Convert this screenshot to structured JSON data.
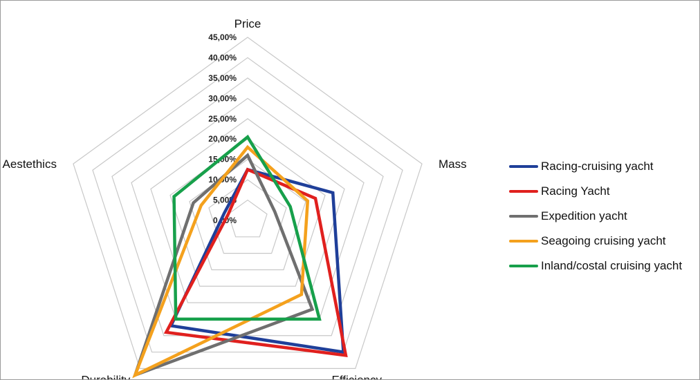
{
  "chart_data": {
    "type": "radar",
    "axes": [
      "Price",
      "Mass",
      "Efficiency",
      "Durability",
      "Aestethics"
    ],
    "ticks": [
      "0,00%",
      "5,00%",
      "10,00%",
      "15,00%",
      "20,00%",
      "25,00%",
      "30,00%",
      "35,00%",
      "40,00%",
      "45,00%"
    ],
    "rlim": [
      0,
      45
    ],
    "grid": true,
    "legend_position": "right",
    "series": [
      {
        "name": "Racing-cruising yacht",
        "color": "#1f3f99",
        "values": [
          12.5,
          22,
          40,
          32,
          6
        ]
      },
      {
        "name": "Racing Yacht",
        "color": "#e0201e",
        "values": [
          12.5,
          17.5,
          41,
          34,
          5
        ]
      },
      {
        "name": "Expedition yacht",
        "color": "#6f6f6f",
        "values": [
          16,
          7,
          27,
          47,
          14
        ]
      },
      {
        "name": "Seagoing cruising yacht",
        "color": "#f4a11d",
        "values": [
          18,
          15.5,
          22.5,
          47,
          12
        ]
      },
      {
        "name": "Inland/costal cruising yacht",
        "color": "#17a04b",
        "values": [
          20.5,
          11,
          30,
          30,
          19
        ]
      }
    ]
  }
}
